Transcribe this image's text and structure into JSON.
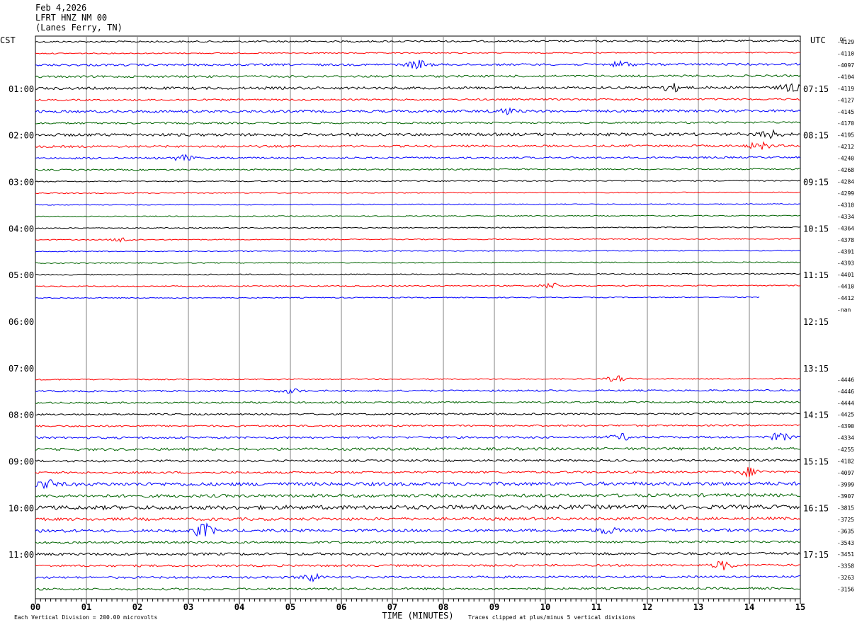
{
  "header": {
    "date": "Feb 4,2026",
    "station": "LFRT HNZ NM 00",
    "location": "(Lanes Ferry, TN)"
  },
  "chart_data": {
    "type": "line",
    "title": "Feb 4,2026 LFRT HNZ NM 00 (Lanes Ferry, TN)",
    "xlabel": "TIME (MINUTES)",
    "xlim": [
      0,
      15
    ],
    "x_ticks": [
      "00",
      "01",
      "02",
      "03",
      "04",
      "05",
      "06",
      "07",
      "08",
      "09",
      "10",
      "11",
      "12",
      "13",
      "14",
      "15"
    ],
    "left_axis_title": "CST",
    "right_axis_title": "UTC",
    "dc_title": "DC",
    "left_time_labels": [
      {
        "row": 4,
        "text": "01:00"
      },
      {
        "row": 8,
        "text": "02:00"
      },
      {
        "row": 12,
        "text": "03:00"
      },
      {
        "row": 16,
        "text": "04:00"
      },
      {
        "row": 20,
        "text": "05:00"
      },
      {
        "row": 24,
        "text": "06:00"
      },
      {
        "row": 28,
        "text": "07:00"
      },
      {
        "row": 32,
        "text": "08:00"
      },
      {
        "row": 36,
        "text": "09:00"
      },
      {
        "row": 40,
        "text": "10:00"
      },
      {
        "row": 44,
        "text": "11:00"
      }
    ],
    "right_time_labels": [
      {
        "row": 4,
        "text": "07:15"
      },
      {
        "row": 8,
        "text": "08:15"
      },
      {
        "row": 12,
        "text": "09:15"
      },
      {
        "row": 16,
        "text": "10:15"
      },
      {
        "row": 20,
        "text": "11:15"
      },
      {
        "row": 24,
        "text": "12:15"
      },
      {
        "row": 28,
        "text": "13:15"
      },
      {
        "row": 32,
        "text": "14:15"
      },
      {
        "row": 36,
        "text": "15:15"
      },
      {
        "row": 40,
        "text": "16:15"
      },
      {
        "row": 44,
        "text": "17:15"
      }
    ],
    "dc_values": [
      "-4129",
      "-4110",
      "-4097",
      "-4104",
      "-4119",
      "-4127",
      "-4145",
      "-4170",
      "-4195",
      "-4212",
      "-4240",
      "-4268",
      "-4284",
      "-4299",
      "-4310",
      "-4334",
      "-4364",
      "-4378",
      "-4391",
      "-4393",
      "-4401",
      "-4410",
      "-4412",
      "-nan",
      "",
      "",
      "",
      "",
      "",
      "-4446",
      "-4446",
      "-4444",
      "-4425",
      "-4390",
      "-4334",
      "-4255",
      "-4182",
      "-4097",
      "-3999",
      "-3907",
      "-3815",
      "-3725",
      "-3635",
      "-3543",
      "-3451",
      "-3358",
      "-3263",
      "-3156"
    ],
    "series_colors": [
      "#000000",
      "#ff0000",
      "#0000ff",
      "#006400"
    ],
    "trace_extent": [
      15,
      15,
      15,
      15,
      15,
      15,
      15,
      15,
      15,
      15,
      15,
      15,
      15,
      15,
      15,
      15,
      15,
      15,
      15,
      15,
      15,
      15,
      14.2,
      0,
      0,
      0,
      0,
      0,
      0,
      15,
      15,
      15,
      15,
      15,
      15,
      15,
      15,
      15,
      15,
      15,
      15,
      15,
      15,
      15,
      15,
      15,
      15,
      15
    ],
    "trace_noise": [
      1.2,
      0.8,
      1.5,
      1.5,
      1.8,
      1.2,
      1.8,
      1.3,
      2.0,
      1.5,
      1.3,
      1.0,
      0.8,
      0.7,
      0.7,
      0.7,
      0.7,
      0.7,
      0.7,
      0.8,
      0.8,
      0.8,
      0.7,
      0,
      0,
      0,
      0,
      0,
      0,
      0.8,
      1.2,
      1.2,
      1.2,
      1.2,
      1.5,
      1.8,
      1.5,
      1.5,
      2.5,
      2.2,
      2.8,
      2.0,
      2.0,
      1.5,
      1.8,
      1.5,
      1.5,
      1.5
    ],
    "trace_bursts": [
      {
        "row": 2,
        "x": 7.5,
        "amp": 6
      },
      {
        "row": 2,
        "x": 11.5,
        "amp": 4
      },
      {
        "row": 4,
        "x": 12.5,
        "amp": 5
      },
      {
        "row": 4,
        "x": 14.8,
        "amp": 5
      },
      {
        "row": 6,
        "x": 9.2,
        "amp": 4
      },
      {
        "row": 8,
        "x": 14.4,
        "amp": 5
      },
      {
        "row": 9,
        "x": 14.2,
        "amp": 5
      },
      {
        "row": 10,
        "x": 2.9,
        "amp": 4
      },
      {
        "row": 17,
        "x": 1.7,
        "amp": 3
      },
      {
        "row": 21,
        "x": 10.1,
        "amp": 4
      },
      {
        "row": 29,
        "x": 11.4,
        "amp": 4
      },
      {
        "row": 30,
        "x": 5.0,
        "amp": 3
      },
      {
        "row": 34,
        "x": 14.6,
        "amp": 5
      },
      {
        "row": 34,
        "x": 11.5,
        "amp": 4
      },
      {
        "row": 37,
        "x": 14.0,
        "amp": 6
      },
      {
        "row": 38,
        "x": 0.2,
        "amp": 6
      },
      {
        "row": 42,
        "x": 3.3,
        "amp": 9
      },
      {
        "row": 42,
        "x": 11.2,
        "amp": 4
      },
      {
        "row": 45,
        "x": 13.5,
        "amp": 6
      },
      {
        "row": 46,
        "x": 5.4,
        "amp": 5
      }
    ],
    "footer_left": "Each Vertical Division =  200.00 microvolts",
    "footer_right": "Traces clipped at plus/minus 5 vertical divisions",
    "grid": true
  }
}
